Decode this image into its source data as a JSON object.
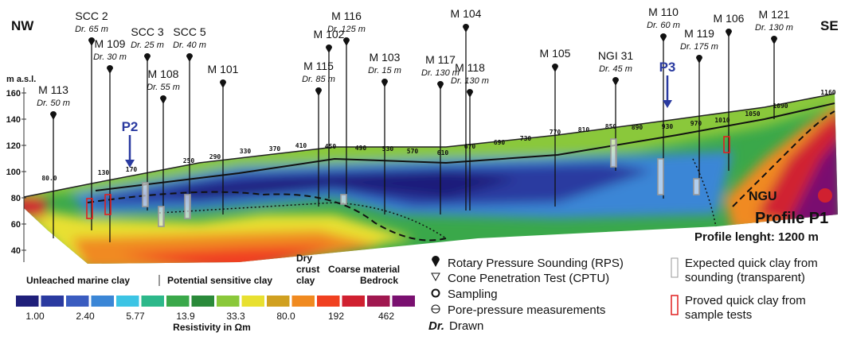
{
  "header": {
    "left": "NW",
    "right": "SE"
  },
  "yaxis": {
    "label": "m a.s.l.",
    "ticks": [
      160,
      140,
      120,
      100,
      80,
      60,
      40
    ]
  },
  "distances": [
    "80.0",
    "130",
    "170",
    "250",
    "290",
    "330",
    "370",
    "410",
    "450",
    "490",
    "530",
    "570",
    "610",
    "670",
    "690",
    "730",
    "770",
    "810",
    "850",
    "890",
    "930",
    "970",
    "1010",
    "1050",
    "1090",
    "1160"
  ],
  "boreholes": [
    {
      "name": "M 113",
      "drawn": "Dr. 50 m"
    },
    {
      "name": "SCC 2",
      "drawn": "Dr. 65 m"
    },
    {
      "name": "M 109",
      "drawn": "Dr. 30 m"
    },
    {
      "name": "SCC 3",
      "drawn": "Dr. 25 m"
    },
    {
      "name": "M 108",
      "drawn": "Dr. 55 m"
    },
    {
      "name": "SCC 5",
      "drawn": "Dr. 40 m"
    },
    {
      "name": "M 101"
    },
    {
      "name": "M 115",
      "drawn": "Dr. 85 m"
    },
    {
      "name": "M 102"
    },
    {
      "name": "M 116",
      "drawn": "Dr. 125 m"
    },
    {
      "name": "M 103",
      "drawn": "Dr. 15 m"
    },
    {
      "name": "M 117",
      "drawn": "Dr. 130 m"
    },
    {
      "name": "M 104"
    },
    {
      "name": "M 118",
      "drawn": "Dr. 130 m"
    },
    {
      "name": "M 105"
    },
    {
      "name": "NGI 31",
      "drawn": "Dr. 45 m"
    },
    {
      "name": "M 110",
      "drawn": "Dr. 60 m"
    },
    {
      "name": "M 119",
      "drawn": "Dr. 175 m"
    },
    {
      "name": "M 106"
    },
    {
      "name": "M 121",
      "drawn": "Dr. 130 m"
    }
  ],
  "markers": [
    "P2",
    "P3"
  ],
  "logo": "NGU",
  "profile": {
    "title": "Profile P1",
    "length": "Profile lenght: 1200 m"
  },
  "units": {
    "unleached": "Unleached marine clay",
    "sensitive": "Potential sensitive clay",
    "dry_crust": [
      "Dry",
      "crust",
      "clay"
    ],
    "coarse": "Coarse material",
    "bedrock": "Bedrock"
  },
  "scale": {
    "colors": [
      "#1f1f7a",
      "#2a3aa0",
      "#3a5cc0",
      "#3b86d6",
      "#3cc4e4",
      "#2db88a",
      "#3aa84a",
      "#2a8a3a",
      "#8ac83a",
      "#e8e030",
      "#d0a020",
      "#f08a20",
      "#f04020",
      "#d02030",
      "#a01850",
      "#7a1070"
    ],
    "labels": [
      "1.00",
      "2.40",
      "5.77",
      "13.9",
      "33.3",
      "80.0",
      "192",
      "462"
    ],
    "title": "Resistivity in Ωm"
  },
  "symbols": [
    "Rotary Pressure Sounding (RPS)",
    "Cone Penetration Test (CPTU)",
    "Sampling",
    "Pore-pressure measurements"
  ],
  "drawn": {
    "abbr": "Dr.",
    "text": "Drawn"
  },
  "quick_clay": {
    "expected": [
      "Expected quick clay from",
      "sounding (transparent)"
    ],
    "proved": [
      "Proved quick clay from",
      "sample tests"
    ]
  }
}
